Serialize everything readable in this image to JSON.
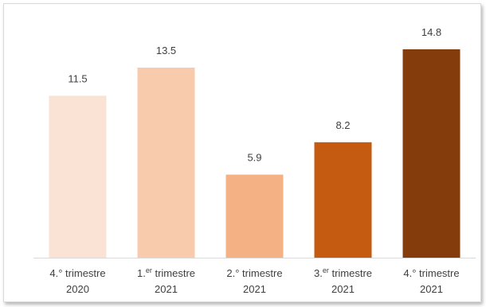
{
  "chart_data": {
    "type": "bar",
    "title": "",
    "xlabel": "",
    "ylabel": "",
    "ylim": [
      0,
      16
    ],
    "grid": false,
    "legend": "none",
    "categories": [
      {
        "line1": "4.° trimestre",
        "sup": "",
        "line2": "2020"
      },
      {
        "line1": "1.",
        "sup": "er",
        "after": " trimestre",
        "line2": "2021"
      },
      {
        "line1": "2.° trimestre",
        "sup": "",
        "line2": "2021"
      },
      {
        "line1": "3.",
        "sup": "er",
        "after": " trimestre",
        "line2": "2021"
      },
      {
        "line1": "4.° trimestre",
        "sup": "",
        "line2": "2021"
      }
    ],
    "values": [
      11.5,
      13.5,
      5.9,
      8.2,
      14.8
    ],
    "value_labels": [
      "11.5",
      "13.5",
      "5.9",
      "8.2",
      "14.8"
    ],
    "colors": [
      "#fae3d4",
      "#f8cbad",
      "#f4b183",
      "#c55a11",
      "#843c0c"
    ]
  }
}
